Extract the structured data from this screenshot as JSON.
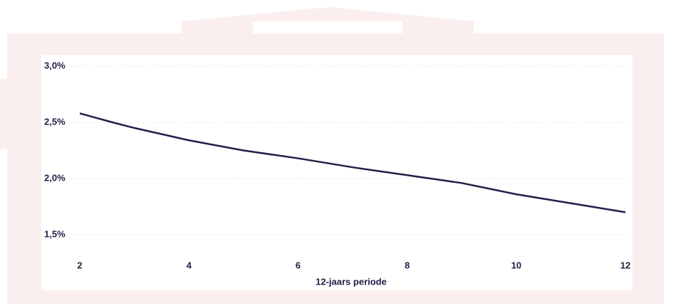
{
  "chart_data": {
    "type": "line",
    "x_label": "12-jaars periode",
    "x": [
      2,
      2.6,
      3,
      4,
      5,
      6,
      7,
      8,
      9,
      10,
      11,
      12
    ],
    "series": [
      {
        "name": null,
        "color": "#1f1f47",
        "values": [
          2.58,
          2.5,
          2.45,
          2.34,
          2.25,
          2.18,
          2.1,
          2.03,
          1.96,
          1.86,
          1.78,
          1.7
        ]
      }
    ],
    "xlim": [
      2,
      12
    ],
    "xticks": [
      2,
      4,
      6,
      8,
      10,
      12
    ],
    "ylim": [
      1.5,
      3.0
    ],
    "yticks": [
      {
        "value": 1.5,
        "label": "1,5%"
      },
      {
        "value": 2.0,
        "label": "2,0%"
      },
      {
        "value": 2.5,
        "label": "2,5%"
      },
      {
        "value": 3.0,
        "label": "3,0%"
      }
    ],
    "grid": true
  }
}
